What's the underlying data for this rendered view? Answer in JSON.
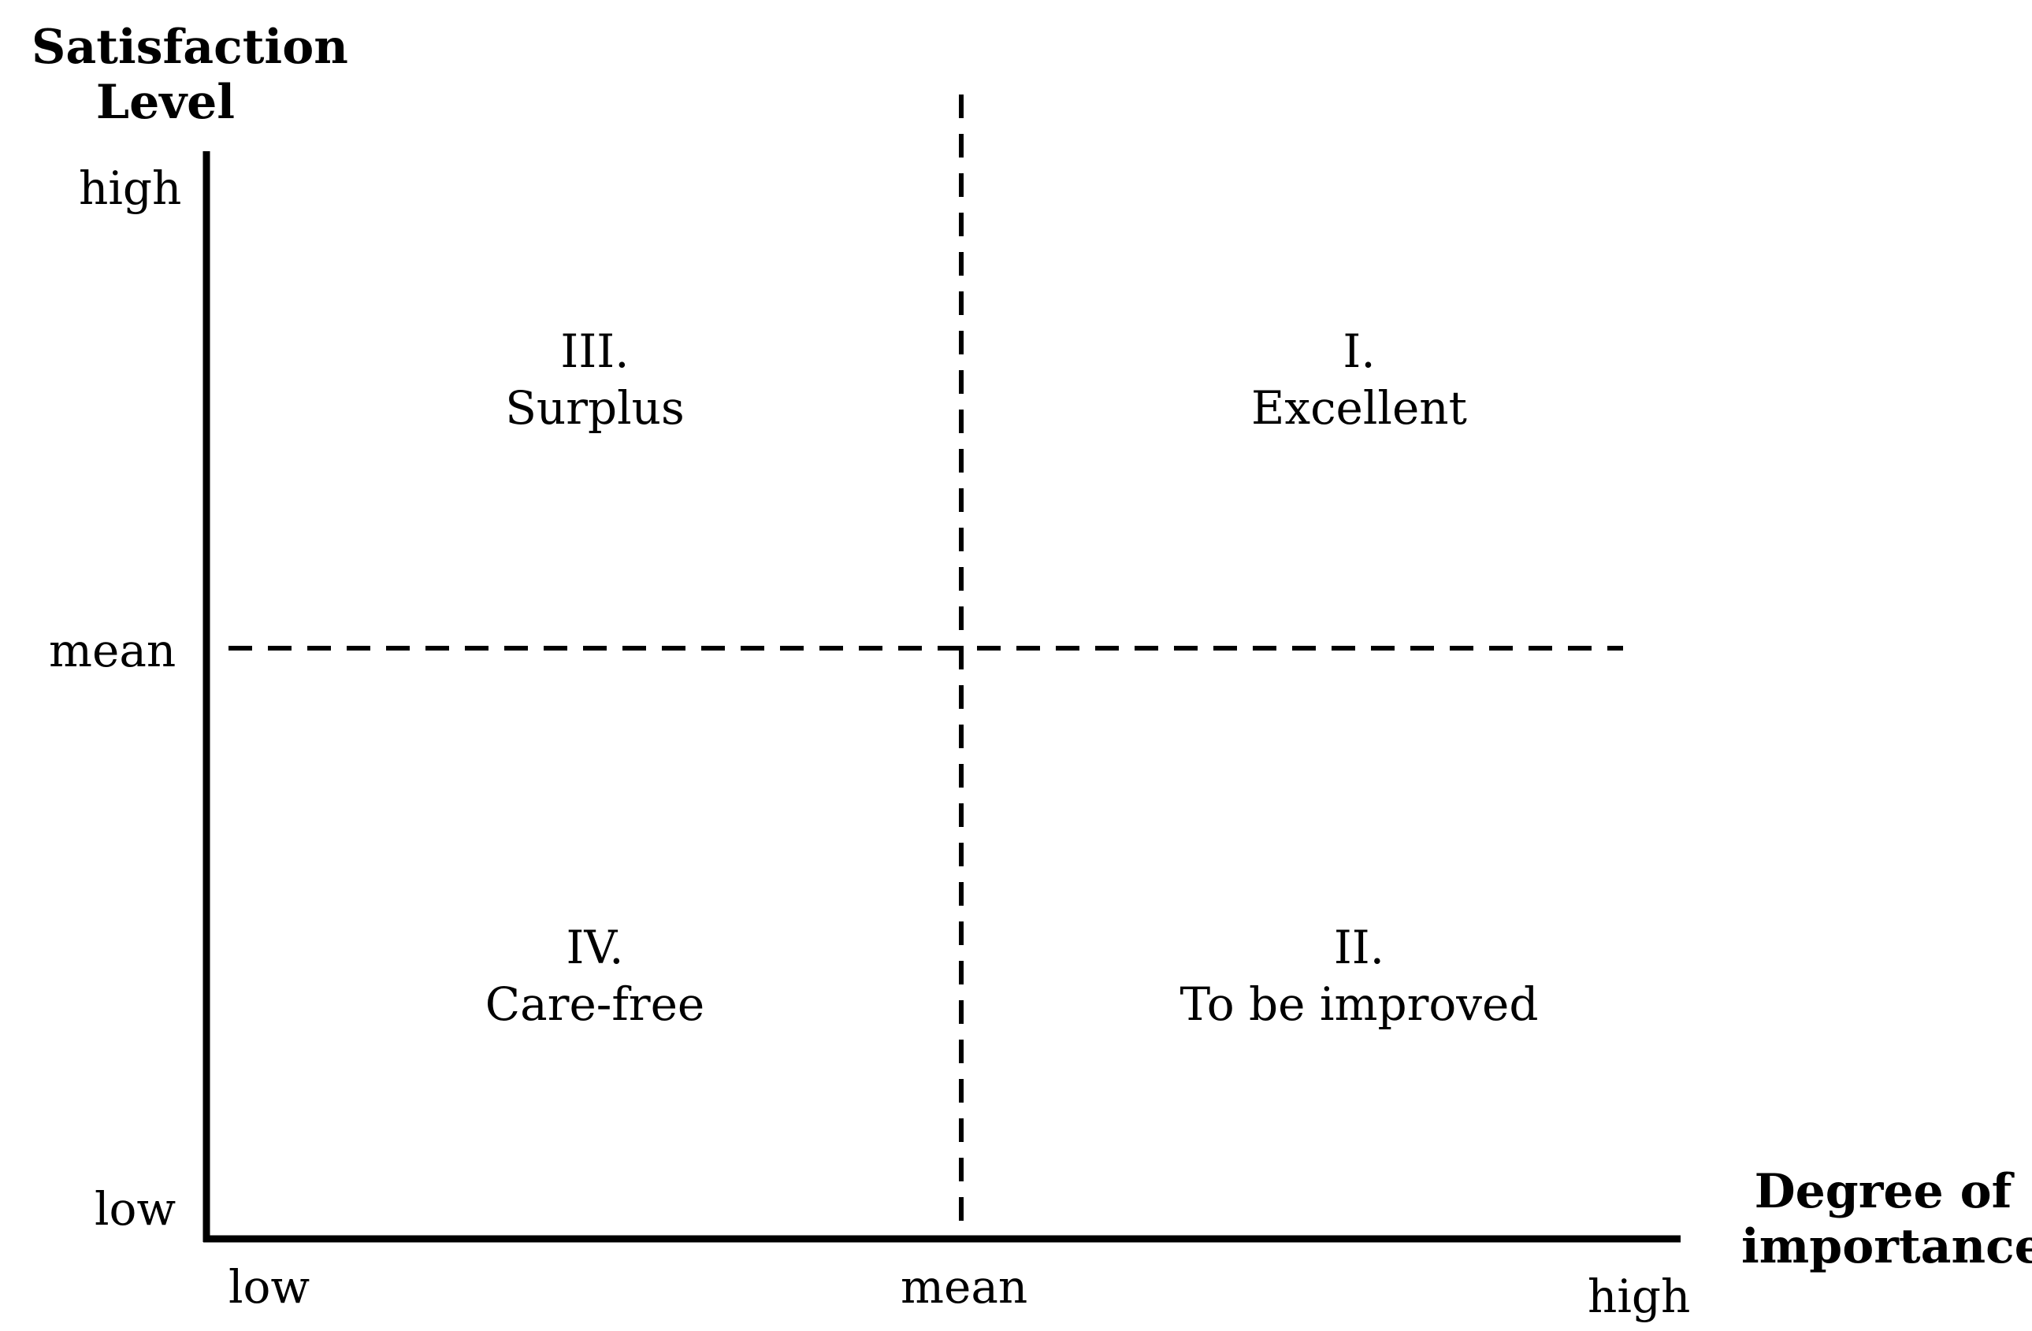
{
  "y_axis": {
    "title_line1": "Satisfaction",
    "title_line2": "Level",
    "ticks": {
      "high": "high",
      "mean": "mean",
      "low": "low"
    }
  },
  "x_axis": {
    "title_line1": "Degree of",
    "title_line2": "importance",
    "ticks": {
      "low": "low",
      "mean": "mean",
      "high": "high"
    }
  },
  "quadrants": {
    "top_left": {
      "numeral": "III.",
      "label": "Surplus"
    },
    "top_right": {
      "numeral": "I.",
      "label": "Excellent"
    },
    "bottom_left": {
      "numeral": "IV.",
      "label": "Care-free"
    },
    "bottom_right": {
      "numeral": "II.",
      "label": "To be improved"
    }
  },
  "colors": {
    "ink": "#000000",
    "background": "#ffffff"
  }
}
